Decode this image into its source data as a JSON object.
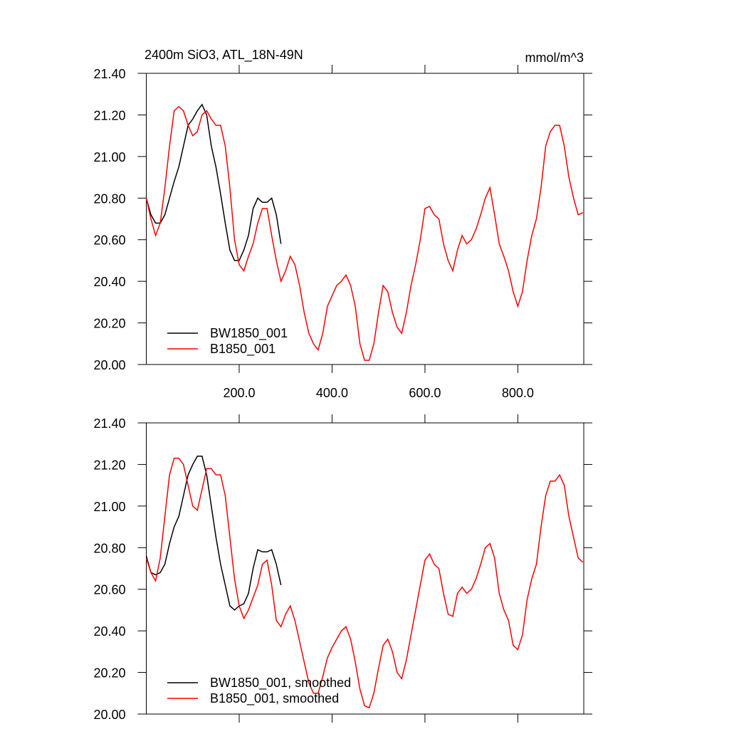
{
  "chart_data": [
    {
      "type": "line",
      "title": "2400m SiO3, ATL_18N-49N",
      "subtitle": "mmol/m^3",
      "x": [
        0,
        10,
        20,
        30,
        40,
        50,
        60,
        70,
        80,
        90,
        100,
        110,
        120,
        130,
        140,
        150,
        160,
        170,
        180,
        190,
        200,
        210,
        220,
        230,
        240,
        250,
        260,
        270,
        280,
        290,
        300,
        310,
        320,
        330,
        340,
        350,
        360,
        370,
        380,
        390,
        400,
        410,
        420,
        430,
        440,
        450,
        460,
        470,
        480,
        490,
        500,
        510,
        520,
        530,
        540,
        550,
        560,
        570,
        580,
        590,
        600,
        610,
        620,
        630,
        640,
        650,
        660,
        670,
        680,
        690,
        700,
        710,
        720,
        730,
        740,
        750,
        760,
        770,
        780,
        790,
        800,
        810,
        820,
        830,
        840,
        850,
        860,
        870,
        880,
        890,
        900,
        910,
        920,
        930,
        940
      ],
      "series": [
        {
          "name": "BW1850_001",
          "color": "#000000",
          "values": [
            20.8,
            20.72,
            20.68,
            20.68,
            20.72,
            20.8,
            20.88,
            20.95,
            21.05,
            21.15,
            21.18,
            21.22,
            21.25,
            21.2,
            21.05,
            20.95,
            20.82,
            20.68,
            20.55,
            20.5,
            20.5,
            20.55,
            20.62,
            20.75,
            20.8,
            20.78,
            20.78,
            20.8,
            20.72,
            20.58,
            null,
            null,
            null,
            null,
            null,
            null,
            null,
            null,
            null,
            null,
            null,
            null,
            null,
            null,
            null,
            null,
            null,
            null,
            null,
            null,
            null,
            null,
            null,
            null,
            null,
            null,
            null,
            null,
            null,
            null,
            null,
            null,
            null,
            null,
            null,
            null,
            null,
            null,
            null,
            null,
            null,
            null,
            null,
            null,
            null,
            null,
            null,
            null,
            null,
            null,
            null,
            null,
            null,
            null,
            null,
            null,
            null,
            null,
            null,
            null,
            null,
            null,
            null,
            null,
            null
          ]
        },
        {
          "name": "B1850_001",
          "color": "#ff0000",
          "values": [
            20.8,
            20.7,
            20.62,
            20.68,
            20.85,
            21.05,
            21.22,
            21.24,
            21.22,
            21.15,
            21.1,
            21.12,
            21.2,
            21.22,
            21.18,
            21.15,
            21.15,
            21.05,
            20.85,
            20.6,
            20.48,
            20.45,
            20.52,
            20.58,
            20.68,
            20.75,
            20.75,
            20.62,
            20.5,
            20.4,
            20.45,
            20.52,
            20.48,
            20.38,
            20.25,
            20.15,
            20.1,
            20.07,
            20.15,
            20.28,
            20.33,
            20.38,
            20.4,
            20.43,
            20.38,
            20.28,
            20.1,
            20.02,
            20.02,
            20.1,
            20.25,
            20.38,
            20.35,
            20.25,
            20.18,
            20.15,
            20.25,
            20.38,
            20.48,
            20.6,
            20.75,
            20.76,
            20.72,
            20.7,
            20.58,
            20.5,
            20.45,
            20.55,
            20.62,
            20.58,
            20.6,
            20.65,
            20.72,
            20.8,
            20.85,
            20.72,
            20.58,
            20.52,
            20.45,
            20.35,
            20.28,
            20.35,
            20.5,
            20.62,
            20.7,
            20.85,
            21.05,
            21.12,
            21.15,
            21.15,
            21.05,
            20.9,
            20.8,
            20.72,
            20.73
          ]
        }
      ],
      "xlim": [
        0,
        942
      ],
      "xticks": [
        {
          "value": 200,
          "label": "200.0"
        },
        {
          "value": 400,
          "label": "400.0"
        },
        {
          "value": 600,
          "label": "600.0"
        },
        {
          "value": 800,
          "label": "800.0"
        }
      ],
      "ylim": [
        20,
        21.4
      ],
      "yticks": [
        {
          "value": 20,
          "label": "20.00"
        },
        {
          "value": 20.2,
          "label": "20.20"
        },
        {
          "value": 20.4,
          "label": "20.40"
        },
        {
          "value": 20.6,
          "label": "20.60"
        },
        {
          "value": 20.8,
          "label": "20.80"
        },
        {
          "value": 21,
          "label": "21.00"
        },
        {
          "value": 21.2,
          "label": "21.20"
        },
        {
          "value": 21.4,
          "label": "21.40"
        }
      ],
      "legend": "lower left"
    },
    {
      "type": "line",
      "x": [
        0,
        10,
        20,
        30,
        40,
        50,
        60,
        70,
        80,
        90,
        100,
        110,
        120,
        130,
        140,
        150,
        160,
        170,
        180,
        190,
        200,
        210,
        220,
        230,
        240,
        250,
        260,
        270,
        280,
        290,
        300,
        310,
        320,
        330,
        340,
        350,
        360,
        370,
        380,
        390,
        400,
        410,
        420,
        430,
        440,
        450,
        460,
        470,
        480,
        490,
        500,
        510,
        520,
        530,
        540,
        550,
        560,
        570,
        580,
        590,
        600,
        610,
        620,
        630,
        640,
        650,
        660,
        670,
        680,
        690,
        700,
        710,
        720,
        730,
        740,
        750,
        760,
        770,
        780,
        790,
        800,
        810,
        820,
        830,
        840,
        850,
        860,
        870,
        880,
        890,
        900,
        910,
        920,
        930,
        940
      ],
      "series": [
        {
          "name": "BW1850_001, smoothed",
          "color": "#000000",
          "values": [
            20.76,
            20.68,
            20.67,
            20.68,
            20.72,
            20.82,
            20.9,
            20.95,
            21.05,
            21.15,
            21.2,
            21.24,
            21.24,
            21.15,
            21.0,
            20.85,
            20.72,
            20.62,
            20.52,
            20.5,
            20.52,
            20.53,
            20.58,
            20.7,
            20.79,
            20.78,
            20.78,
            20.79,
            20.72,
            20.62,
            null,
            null,
            null,
            null,
            null,
            null,
            null,
            null,
            null,
            null,
            null,
            null,
            null,
            null,
            null,
            null,
            null,
            null,
            null,
            null,
            null,
            null,
            null,
            null,
            null,
            null,
            null,
            null,
            null,
            null,
            null,
            null,
            null,
            null,
            null,
            null,
            null,
            null,
            null,
            null,
            null,
            null,
            null,
            null,
            null,
            null,
            null,
            null,
            null,
            null,
            null,
            null,
            null,
            null,
            null,
            null,
            null,
            null,
            null,
            null,
            null,
            null,
            null,
            null,
            null
          ]
        },
        {
          "name": "B1850_001, smoothed",
          "color": "#ff0000",
          "values": [
            20.75,
            20.68,
            20.64,
            20.75,
            20.95,
            21.15,
            21.23,
            21.23,
            21.2,
            21.1,
            21.0,
            20.98,
            21.08,
            21.18,
            21.18,
            21.15,
            21.15,
            21.05,
            20.85,
            20.65,
            20.52,
            20.46,
            20.5,
            20.56,
            20.62,
            20.72,
            20.74,
            20.62,
            20.45,
            20.42,
            20.48,
            20.52,
            20.45,
            20.35,
            20.25,
            20.15,
            20.1,
            20.1,
            20.18,
            20.27,
            20.32,
            20.36,
            20.4,
            20.42,
            20.36,
            20.25,
            20.12,
            20.04,
            20.03,
            20.1,
            20.22,
            20.33,
            20.36,
            20.3,
            20.2,
            20.17,
            20.26,
            20.38,
            20.5,
            20.62,
            20.74,
            20.77,
            20.72,
            20.7,
            20.58,
            20.48,
            20.47,
            20.58,
            20.61,
            20.58,
            20.6,
            20.65,
            20.72,
            20.8,
            20.82,
            20.75,
            20.58,
            20.5,
            20.45,
            20.33,
            20.31,
            20.38,
            20.55,
            20.65,
            20.72,
            20.9,
            21.05,
            21.12,
            21.12,
            21.15,
            21.1,
            20.95,
            20.85,
            20.75,
            20.73
          ]
        }
      ],
      "xlim": [
        0,
        942
      ],
      "xticks": [
        200,
        400,
        600,
        800
      ],
      "ylim": [
        20,
        21.4
      ],
      "yticks": [
        {
          "value": 20,
          "label": "20.00"
        },
        {
          "value": 20.2,
          "label": "20.20"
        },
        {
          "value": 20.4,
          "label": "20.40"
        },
        {
          "value": 20.6,
          "label": "20.60"
        },
        {
          "value": 20.8,
          "label": "20.80"
        },
        {
          "value": 21,
          "label": "21.00"
        },
        {
          "value": 21.2,
          "label": "21.20"
        },
        {
          "value": 21.4,
          "label": "21.40"
        }
      ],
      "legend": "lower left"
    }
  ]
}
